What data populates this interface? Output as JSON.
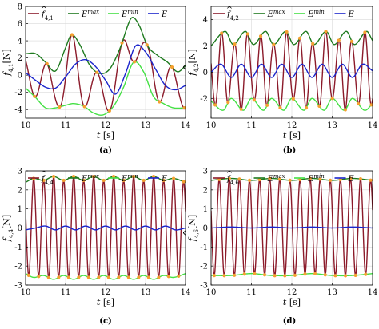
{
  "figure": {
    "legend": {
      "f_sym": "f",
      "Emax": "E",
      "Emax_sup": "max",
      "Emin": "E",
      "Emin_sup": "min",
      "E": "E"
    },
    "colors": {
      "f": "#8B1A2A",
      "Emax": "#1E7A1E",
      "Emin": "#44E044",
      "E": "#1A24CC",
      "marker": "#F5A030"
    }
  },
  "chart_data": [
    {
      "type": "line",
      "caption": "(a)",
      "ylabel_sub": "4,1",
      "ylabel_unit": "[N]",
      "legend_sub": "4,1",
      "xlabel": "t",
      "xlabel_unit": "[s]",
      "xlim": [
        10,
        14
      ],
      "ylim": [
        -5,
        8
      ],
      "xticks": [
        10,
        11,
        12,
        13,
        14
      ],
      "yticks": [
        -4,
        -2,
        0,
        2,
        4,
        6,
        8
      ],
      "legend_position": "top",
      "series": [
        {
          "key": "Emax",
          "x": [
            10.0,
            10.25,
            10.5,
            10.75,
            11.0,
            11.15,
            11.35,
            11.6,
            11.85,
            12.1,
            12.35,
            12.6,
            12.7,
            12.85,
            13.05,
            13.3,
            13.55,
            13.8,
            14.0
          ],
          "y": [
            2.5,
            2.5,
            1.5,
            0.5,
            3.2,
            4.7,
            3.6,
            1.2,
            0.2,
            0.7,
            3.0,
            6.3,
            6.7,
            5.7,
            3.4,
            2.3,
            1.5,
            0.4,
            1.1
          ]
        },
        {
          "key": "Emin",
          "x": [
            10.0,
            10.25,
            10.5,
            10.75,
            11.0,
            11.2,
            11.45,
            11.7,
            11.95,
            12.2,
            12.45,
            12.7,
            12.95,
            13.2,
            13.45,
            13.7,
            14.0
          ],
          "y": [
            -1.5,
            -2.6,
            -3.8,
            -3.8,
            -3.5,
            -3.3,
            -3.6,
            -4.4,
            -4.6,
            -3.6,
            -1.4,
            1.5,
            0.4,
            -2.5,
            -3.3,
            -3.8,
            -3.8
          ]
        },
        {
          "key": "E",
          "x": [
            10.0,
            10.25,
            10.5,
            10.75,
            11.0,
            11.25,
            11.5,
            11.75,
            12.0,
            12.25,
            12.5,
            12.75,
            13.0,
            13.25,
            13.5,
            13.75,
            14.0
          ],
          "y": [
            0.3,
            -0.6,
            -1.4,
            -1.5,
            -0.2,
            1.3,
            1.8,
            1.0,
            -0.6,
            -2.2,
            0.2,
            3.4,
            2.7,
            0.7,
            -1.2,
            -1.7,
            -1.2
          ]
        }
      ]
    },
    {
      "type": "line",
      "caption": "(b)",
      "ylabel_sub": "4,2",
      "ylabel_unit": "[N]",
      "legend_sub": "4,2",
      "xlabel": "t",
      "xlabel_unit": "[s]",
      "xlim": [
        10,
        14
      ],
      "ylim": [
        -3.5,
        5
      ],
      "xticks": [
        10,
        11,
        12,
        13,
        14
      ],
      "yticks": [
        -2,
        0,
        2,
        4
      ],
      "legend_position": "top",
      "series": [
        {
          "key": "Emax",
          "x": [
            10.0,
            10.35,
            10.55,
            10.85,
            11.05,
            11.35,
            11.55,
            11.85,
            12.05,
            12.35,
            12.55,
            12.85,
            13.05,
            13.35,
            13.55,
            13.85,
            14.0
          ],
          "y": [
            2.0,
            3.1,
            2.1,
            3.1,
            2.1,
            3.1,
            2.1,
            3.1,
            2.1,
            3.1,
            2.1,
            3.1,
            2.1,
            3.1,
            2.1,
            3.1,
            2.4
          ]
        },
        {
          "key": "Emin",
          "x": [
            10.0,
            10.3,
            10.5,
            10.8,
            11.0,
            11.3,
            11.5,
            11.8,
            12.0,
            12.3,
            12.5,
            12.8,
            13.0,
            13.3,
            13.5,
            13.8,
            14.0
          ],
          "y": [
            -2.2,
            -2.9,
            -2.0,
            -2.9,
            -2.0,
            -2.9,
            -2.0,
            -2.9,
            -2.0,
            -2.9,
            -2.0,
            -2.9,
            -2.0,
            -2.9,
            -2.0,
            -2.9,
            -2.4
          ]
        },
        {
          "key": "E",
          "x": [
            10.0,
            10.25,
            10.5,
            10.75,
            11.0,
            11.25,
            11.5,
            11.75,
            12.0,
            12.25,
            12.5,
            12.75,
            13.0,
            13.25,
            13.5,
            13.75,
            14.0
          ],
          "y": [
            0.0,
            0.6,
            -0.4,
            0.6,
            -0.4,
            0.6,
            -0.4,
            0.6,
            -0.4,
            0.6,
            -0.4,
            0.6,
            -0.4,
            0.6,
            -0.4,
            0.6,
            0.1
          ]
        }
      ]
    },
    {
      "type": "line",
      "caption": "(c)",
      "ylabel_sub": "4,4",
      "ylabel_unit": "[N]",
      "legend_sub": "4,4",
      "xlabel": "t",
      "xlabel_unit": "[s]",
      "xlim": [
        10,
        14
      ],
      "ylim": [
        -3,
        3
      ],
      "xticks": [
        10,
        11,
        12,
        13,
        14
      ],
      "yticks": [
        -3,
        -2,
        -1,
        0,
        1,
        2,
        3
      ],
      "legend_position": "top",
      "series": [
        {
          "key": "Emax",
          "x": [
            10.0,
            10.2,
            10.45,
            10.7,
            10.95,
            11.2,
            11.45,
            11.7,
            11.95,
            12.2,
            12.45,
            12.7,
            12.95,
            13.2,
            13.45,
            13.7,
            14.0
          ],
          "y": [
            2.4,
            2.6,
            2.5,
            2.7,
            2.5,
            2.7,
            2.5,
            2.7,
            2.5,
            2.7,
            2.5,
            2.7,
            2.5,
            2.7,
            2.5,
            2.6,
            2.4
          ]
        },
        {
          "key": "Emin",
          "x": [
            10.0,
            10.2,
            10.45,
            10.7,
            10.95,
            11.2,
            11.45,
            11.7,
            11.95,
            12.2,
            12.45,
            12.7,
            12.95,
            13.2,
            13.45,
            13.7,
            14.0
          ],
          "y": [
            -2.4,
            -2.6,
            -2.5,
            -2.7,
            -2.5,
            -2.7,
            -2.5,
            -2.7,
            -2.5,
            -2.7,
            -2.5,
            -2.7,
            -2.5,
            -2.7,
            -2.5,
            -2.6,
            -2.4
          ]
        },
        {
          "key": "E",
          "x": [
            10.0,
            10.25,
            10.5,
            10.75,
            11.0,
            11.25,
            11.5,
            11.75,
            12.0,
            12.25,
            12.5,
            12.75,
            13.0,
            13.25,
            13.5,
            13.75,
            14.0
          ],
          "y": [
            -0.1,
            0.0,
            0.1,
            -0.1,
            0.1,
            -0.1,
            0.1,
            -0.1,
            0.1,
            -0.1,
            0.1,
            -0.1,
            0.1,
            -0.1,
            0.1,
            -0.1,
            0.0
          ]
        }
      ]
    },
    {
      "type": "line",
      "caption": "(d)",
      "ylabel_sub": "4,6",
      "ylabel_unit": "[N]",
      "legend_sub": "4,6",
      "xlabel": "t",
      "xlabel_unit": "[s]",
      "xlim": [
        10,
        14
      ],
      "ylim": [
        -3,
        3
      ],
      "xticks": [
        10,
        11,
        12,
        13,
        14
      ],
      "yticks": [
        -3,
        -2,
        -1,
        0,
        1,
        2,
        3
      ],
      "legend_position": "top",
      "series": [
        {
          "key": "Emax",
          "x": [
            10.0,
            10.5,
            11.0,
            11.5,
            12.0,
            12.5,
            13.0,
            13.5,
            14.0
          ],
          "y": [
            2.5,
            2.6,
            2.5,
            2.6,
            2.5,
            2.6,
            2.5,
            2.6,
            2.5
          ]
        },
        {
          "key": "Emin",
          "x": [
            10.0,
            10.5,
            11.0,
            11.5,
            12.0,
            12.5,
            13.0,
            13.5,
            14.0
          ],
          "y": [
            -2.5,
            -2.5,
            -2.4,
            -2.5,
            -2.5,
            -2.4,
            -2.5,
            -2.5,
            -2.4
          ]
        },
        {
          "key": "E",
          "x": [
            10.0,
            10.5,
            11.0,
            11.5,
            12.0,
            12.5,
            13.0,
            13.5,
            14.0
          ],
          "y": [
            0.0,
            0.05,
            0.0,
            0.05,
            0.0,
            0.05,
            0.0,
            0.05,
            0.0
          ]
        }
      ]
    }
  ]
}
